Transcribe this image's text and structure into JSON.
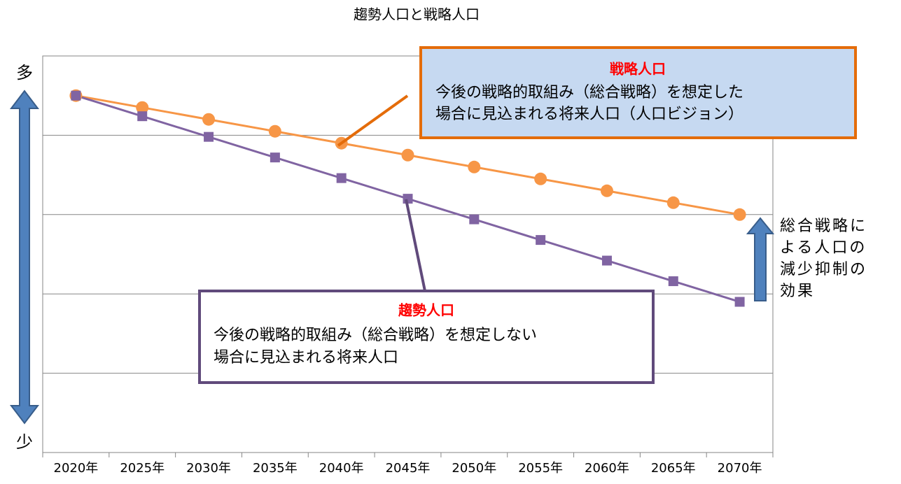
{
  "chart_data": {
    "type": "line",
    "title": "趨勢人口と戦略人口",
    "categories": [
      "2020年",
      "2025年",
      "2030年",
      "2035年",
      "2040年",
      "2045年",
      "2050年",
      "2055年",
      "2060年",
      "2065年",
      "2070年"
    ],
    "series": [
      {
        "name": "戦略人口",
        "color": "#f79646",
        "marker": "circle",
        "values": [
          4.5,
          4.35,
          4.2,
          4.05,
          3.9,
          3.75,
          3.6,
          3.45,
          3.3,
          3.15,
          3.0
        ]
      },
      {
        "name": "趨勢人口",
        "color": "#8064a2",
        "marker": "square",
        "values": [
          4.5,
          4.24,
          3.98,
          3.72,
          3.46,
          3.2,
          2.94,
          2.68,
          2.42,
          2.16,
          1.9
        ]
      }
    ],
    "ylim": [
      0,
      5
    ],
    "yticks": [
      0,
      1,
      2,
      3,
      4,
      5
    ],
    "grid": true,
    "y_axis_top_label": "多",
    "y_axis_bottom_label": "少",
    "annotations": [
      {
        "lines": [
          "今後の戦略的取組み（総合戦略）を想定した",
          "場合に見込まれる将来人口（人口ビジョン）"
        ]
      },
      {
        "lines": [
          "今後の戦略的取組み（総合戦略）を想定しない",
          "場合に見込まれる将来人口"
        ]
      },
      {
        "lines": [
          "総合戦略に",
          "よる人口の",
          "減少抑制の",
          "効果"
        ]
      }
    ]
  }
}
